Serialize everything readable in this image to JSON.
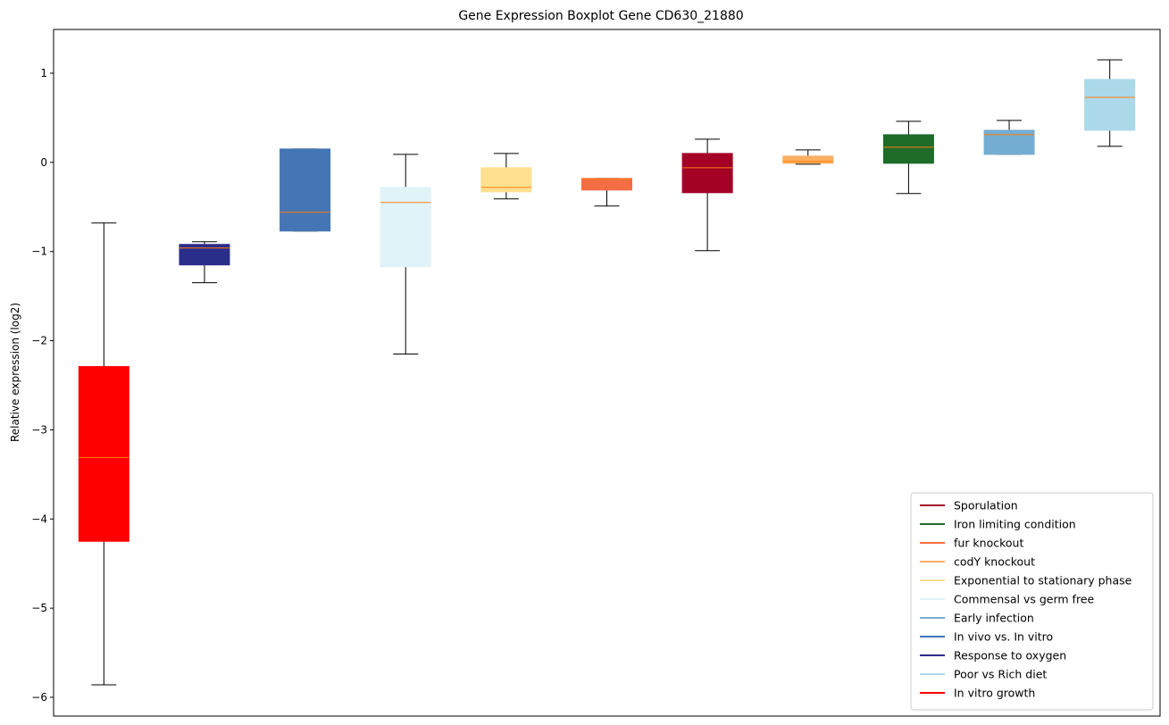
{
  "chart_data": {
    "type": "boxplot",
    "title": "Gene Expression Boxplot Gene CD630_21880",
    "xlabel": "",
    "ylabel": "Relative expression (log2)",
    "ylim": [
      -6.2,
      1.5
    ],
    "yticks": [
      1,
      0,
      -1,
      -2,
      -3,
      -4,
      -5,
      -6
    ],
    "ytick_labels": [
      "1",
      "0",
      "−1",
      "−2",
      "−3",
      "−4",
      "−5",
      "−6"
    ],
    "legend_position": "bottom-right",
    "boxes": [
      {
        "name": "In vitro growth",
        "color": "#ff0000",
        "whisker_low": -5.86,
        "q1": -4.25,
        "median": -3.31,
        "q3": -2.29,
        "whisker_high": -0.68
      },
      {
        "name": "Response to oxygen",
        "color": "#2b2d8a",
        "whisker_low": -1.35,
        "q1": -1.15,
        "median": -0.96,
        "q3": -0.92,
        "whisker_high": -0.89
      },
      {
        "name": "In vivo vs. In vitro",
        "color": "#4575b4",
        "whisker_low": -0.77,
        "q1": -0.77,
        "median": -0.56,
        "q3": 0.15,
        "whisker_high": 0.15
      },
      {
        "name": "Commensal vs germ free",
        "color": "#e0f3f8",
        "whisker_low": -2.15,
        "q1": -1.17,
        "median": -0.45,
        "q3": -0.28,
        "whisker_high": 0.09
      },
      {
        "name": "Exponential to stationary phase",
        "color": "#fee090",
        "whisker_low": -0.41,
        "q1": -0.33,
        "median": -0.28,
        "q3": -0.06,
        "whisker_high": 0.1
      },
      {
        "name": "fur knockout",
        "color": "#f46d43",
        "whisker_low": -0.49,
        "q1": -0.31,
        "median": -0.19,
        "q3": -0.18,
        "whisker_high": -0.18
      },
      {
        "name": "Sporulation",
        "color": "#a50026",
        "whisker_low": -0.99,
        "q1": -0.34,
        "median": -0.06,
        "q3": 0.1,
        "whisker_high": 0.26
      },
      {
        "name": "codY knockout",
        "color": "#fdae61",
        "whisker_low": -0.02,
        "q1": -0.01,
        "median": 0.01,
        "q3": 0.07,
        "whisker_high": 0.14
      },
      {
        "name": "Iron limiting condition",
        "color": "#1e6b2a",
        "whisker_low": -0.35,
        "q1": -0.01,
        "median": 0.17,
        "q3": 0.31,
        "whisker_high": 0.46
      },
      {
        "name": "Early infection",
        "color": "#74add1",
        "whisker_low": 0.09,
        "q1": 0.09,
        "median": 0.31,
        "q3": 0.36,
        "whisker_high": 0.47
      },
      {
        "name": "Poor vs Rich diet",
        "color": "#abd9e9",
        "whisker_low": 0.18,
        "q1": 0.36,
        "median": 0.73,
        "q3": 0.93,
        "whisker_high": 1.15
      }
    ],
    "legend": [
      {
        "label": "Sporulation",
        "color": "#a50026"
      },
      {
        "label": "Iron limiting condition",
        "color": "#1e6b2a"
      },
      {
        "label": "fur knockout",
        "color": "#f46d43"
      },
      {
        "label": "codY knockout",
        "color": "#fdae61"
      },
      {
        "label": "Exponential to stationary phase",
        "color": "#fee090"
      },
      {
        "label": "Commensal vs germ free",
        "color": "#e0f3f8"
      },
      {
        "label": "Early infection",
        "color": "#74add1"
      },
      {
        "label": "In vivo vs. In vitro",
        "color": "#4575b4"
      },
      {
        "label": "Response to oxygen",
        "color": "#2b2d8a"
      },
      {
        "label": "Poor vs Rich diet",
        "color": "#abd9e9"
      },
      {
        "label": "In vitro growth",
        "color": "#ff0000"
      }
    ],
    "median_color": "#ff7f0e"
  }
}
